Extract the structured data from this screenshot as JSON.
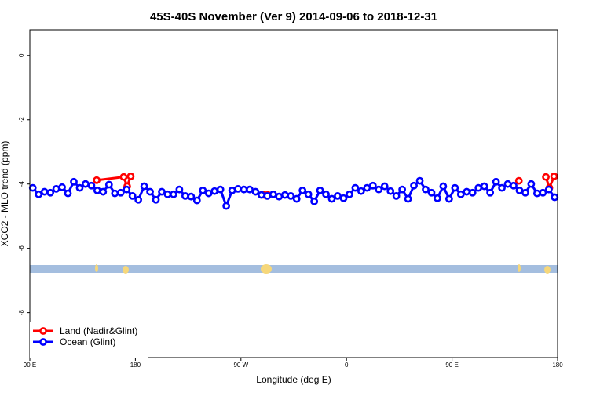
{
  "chart_data": {
    "type": "line",
    "title": "45S-40S November (Ver 9)   2014-09-06 to 2018-12-31",
    "x_label": "Longitude (deg E)",
    "y_label": "XCO2 - MLO trend (ppm)",
    "xlim": [
      90,
      540
    ],
    "xticks": [
      {
        "value": 90,
        "label": "90 E"
      },
      {
        "value": 180,
        "label": "180"
      },
      {
        "value": 270,
        "label": "90 W"
      },
      {
        "value": 360,
        "label": "0"
      },
      {
        "value": 450,
        "label": "90 E"
      },
      {
        "value": 540,
        "label": "180"
      }
    ],
    "ylim": [
      -9.4,
      0.8
    ],
    "yticks": [
      0,
      -2,
      -4,
      -6,
      -8
    ],
    "grid": false,
    "legend": "bottom-left",
    "series": [
      {
        "name": "Land (Nadir&Glint)",
        "color": "#ff0000",
        "x": [
          147,
          170,
          173,
          176,
          null,
          290,
          293,
          null,
          507,
          null,
          530,
          533,
          537
        ],
        "values": [
          -3.88,
          -3.78,
          -4.07,
          -3.76,
          null,
          -4.34,
          -4.34,
          null,
          -3.9,
          null,
          -3.78,
          -4.12,
          -3.76
        ]
      },
      {
        "name": "Ocean (Glint)",
        "color": "#0000ff",
        "x": [
          92.5,
          97.5,
          102.5,
          107.5,
          112.5,
          117.5,
          122.5,
          127.5,
          132.5,
          137.5,
          142.5,
          147.5,
          152.5,
          157.5,
          162.5,
          167.5,
          172.5,
          177.5,
          182.5,
          187.5,
          192.5,
          197.5,
          202.5,
          207.5,
          212.5,
          217.5,
          222.5,
          227.5,
          232.5,
          237.5,
          242.5,
          247.5,
          252.5,
          257.5,
          262.5,
          267.5,
          272.5,
          277.5,
          282.5,
          287.5,
          292.5,
          297.5,
          302.5,
          307.5,
          312.5,
          317.5,
          322.5,
          327.5,
          332.5,
          337.5,
          342.5,
          347.5,
          352.5,
          357.5,
          362.5,
          367.5,
          372.5,
          377.5,
          382.5,
          387.5,
          392.5,
          397.5,
          402.5,
          407.5,
          412.5,
          417.5,
          422.5,
          427.5,
          432.5,
          437.5,
          442.5,
          447.5,
          452.5,
          457.5,
          462.5,
          467.5,
          472.5,
          477.5,
          482.5,
          487.5,
          492.5,
          497.5,
          502.5,
          507.5,
          512.5,
          517.5,
          522.5,
          527.5,
          532.5,
          537.5
        ],
        "values": [
          -4.12,
          -4.32,
          -4.24,
          -4.27,
          -4.15,
          -4.1,
          -4.29,
          -3.93,
          -4.12,
          -4.0,
          -4.05,
          -4.2,
          -4.24,
          -4.02,
          -4.29,
          -4.27,
          -4.17,
          -4.37,
          -4.49,
          -4.07,
          -4.24,
          -4.49,
          -4.24,
          -4.32,
          -4.32,
          -4.17,
          -4.37,
          -4.39,
          -4.51,
          -4.2,
          -4.29,
          -4.22,
          -4.17,
          -4.68,
          -4.2,
          -4.15,
          -4.17,
          -4.17,
          -4.24,
          -4.34,
          -4.37,
          -4.32,
          -4.39,
          -4.34,
          -4.37,
          -4.46,
          -4.2,
          -4.32,
          -4.54,
          -4.2,
          -4.32,
          -4.46,
          -4.37,
          -4.44,
          -4.32,
          -4.12,
          -4.22,
          -4.12,
          -4.05,
          -4.17,
          -4.07,
          -4.22,
          -4.37,
          -4.17,
          -4.46,
          -4.05,
          -3.9,
          -4.17,
          -4.27,
          -4.44,
          -4.07,
          -4.46,
          -4.12,
          -4.32,
          -4.24,
          -4.27,
          -4.12,
          -4.07,
          -4.27,
          -3.93,
          -4.12,
          -4.0,
          -4.05,
          -4.2,
          -4.27,
          -4.0,
          -4.29,
          -4.27,
          -4.17,
          -4.41
        ]
      }
    ]
  }
}
